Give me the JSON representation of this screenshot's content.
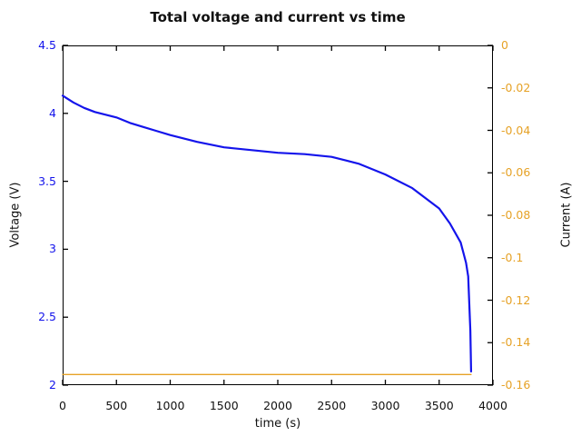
{
  "title": "Total voltage and current vs time",
  "colors": {
    "voltage_blue": "#1414eb",
    "current_orange": "#e6a227",
    "axis_black": "#000000",
    "background": "#ffffff"
  },
  "chart_data": {
    "type": "line",
    "title": "Total voltage and current vs time",
    "xlabel": "time (s)",
    "ylabel_left": "Voltage (V)",
    "ylabel_right": "Current (A)",
    "xlim": [
      0,
      4000
    ],
    "ylim_left": [
      2,
      4.5
    ],
    "ylim_right": [
      -0.16,
      0
    ],
    "xticks": [
      0,
      500,
      1000,
      1500,
      2000,
      2500,
      3000,
      3500,
      4000
    ],
    "xtick_labels": [
      "0",
      "500",
      "1000",
      "1500",
      "2000",
      "2500",
      "3000",
      "3500",
      "4000"
    ],
    "yticks_left": [
      4.5,
      4,
      3.5,
      3,
      2.5,
      2
    ],
    "ytick_left_labels": [
      "4.5",
      "4",
      "3.5",
      "3",
      "2.5",
      "2"
    ],
    "yticks_right": [
      0,
      -0.02,
      -0.04,
      -0.06,
      -0.08,
      -0.1,
      -0.12,
      -0.14,
      -0.16
    ],
    "ytick_right_labels": [
      "0",
      "-0.02",
      "-0.04",
      "-0.06",
      "-0.08",
      "-0.1",
      "-0.12",
      "-0.14",
      "-0.16"
    ],
    "grid": false,
    "legend": "none",
    "box": true,
    "tick_direction": "in",
    "series": [
      {
        "name": "Total voltage",
        "axis": "left",
        "color": "#1414eb",
        "line_width": 2.2,
        "x": [
          0,
          100,
          200,
          300,
          400,
          500,
          625,
          750,
          875,
          1000,
          1250,
          1500,
          1750,
          2000,
          2250,
          2500,
          2750,
          3000,
          3250,
          3500,
          3600,
          3700,
          3750,
          3770,
          3790,
          3797
        ],
        "y": [
          4.13,
          4.08,
          4.04,
          4.01,
          3.99,
          3.97,
          3.93,
          3.9,
          3.87,
          3.84,
          3.79,
          3.75,
          3.73,
          3.71,
          3.7,
          3.68,
          3.63,
          3.55,
          3.45,
          3.3,
          3.19,
          3.05,
          2.9,
          2.8,
          2.4,
          2.1
        ]
      },
      {
        "name": "Current",
        "axis": "right",
        "color": "#e6a227",
        "line_width": 1.3,
        "x": [
          0,
          3797
        ],
        "y": [
          -0.155,
          -0.155
        ]
      }
    ]
  }
}
